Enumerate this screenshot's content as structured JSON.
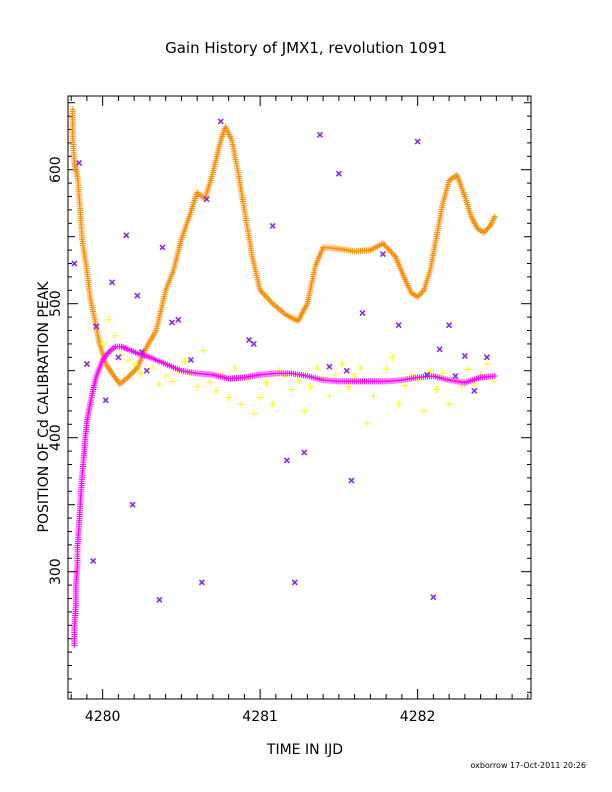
{
  "chart_data": {
    "type": "scatter",
    "title": "Gain History of JMX1, revolution 1091",
    "xlabel": "TIME IN IJD",
    "ylabel": "POSITION OF Cd CALIBRATION PEAK",
    "xlim": [
      4279.78,
      4282.72
    ],
    "ylim": [
      205,
      655
    ],
    "x_ticks": [
      4280,
      4281,
      4282
    ],
    "y_ticks": [
      300,
      400,
      500,
      600
    ],
    "grid": false,
    "footer": "oxborrow 17-Oct-2011 20:26",
    "colors": {
      "orange": "#ff8c00",
      "yellow": "#ffff00",
      "magenta": "#ff00ff",
      "purple": "#8a2be2",
      "frame": "#000000"
    },
    "series": [
      {
        "marker": "plus",
        "color": "#ff8c00",
        "x": [
          4279.81,
          4279.81,
          4279.82,
          4279.83,
          4279.84,
          4279.85,
          4279.86,
          4279.87,
          4279.88,
          4279.9,
          4279.92,
          4279.95,
          4279.98,
          4280.02,
          4280.06,
          4280.11,
          4280.16,
          4280.22,
          4280.28,
          4280.34,
          4280.4,
          4280.45,
          4280.5,
          4280.55,
          4280.6,
          4280.65,
          4280.7,
          4280.75,
          4280.78,
          4280.82,
          4280.86,
          4280.9,
          4280.95,
          4281.0,
          4281.08,
          4281.16,
          4281.24,
          4281.3,
          4281.35,
          4281.4,
          4281.5,
          4281.6,
          4281.7,
          4281.78,
          4281.86,
          4281.92,
          4281.96,
          4282.0,
          4282.04,
          4282.08,
          4282.12,
          4282.16,
          4282.2,
          4282.25,
          4282.3,
          4282.34,
          4282.38,
          4282.42,
          4282.46,
          4282.49
        ],
        "y": [
          645,
          625,
          605,
          600,
          595,
          582,
          565,
          548,
          540,
          525,
          505,
          488,
          470,
          455,
          448,
          440,
          445,
          452,
          468,
          480,
          510,
          525,
          548,
          565,
          583,
          578,
          598,
          622,
          632,
          622,
          598,
          570,
          535,
          510,
          500,
          492,
          487,
          500,
          528,
          542,
          541,
          539,
          540,
          545,
          535,
          518,
          508,
          505,
          510,
          525,
          550,
          575,
          592,
          596,
          580,
          565,
          556,
          553,
          558,
          565
        ]
      },
      {
        "marker": "plus",
        "color": "#ffff00",
        "x": [
          4280.0,
          4280.04,
          4280.08,
          4280.12,
          4280.16,
          4280.2,
          4280.24,
          4280.28,
          4280.32,
          4280.36,
          4280.4,
          4280.44,
          4280.48,
          4280.52,
          4280.56,
          4280.6,
          4280.64,
          4280.68,
          4280.72,
          4280.76,
          4280.8,
          4280.84,
          4280.88,
          4280.92,
          4280.96,
          4281.0,
          4281.04,
          4281.08,
          4281.12,
          4281.16,
          4281.2,
          4281.24,
          4281.28,
          4281.32,
          4281.36,
          4281.4,
          4281.44,
          4281.48,
          4281.52,
          4281.56,
          4281.6,
          4281.64,
          4281.68,
          4281.72,
          4281.76,
          4281.8,
          4281.84,
          4281.88,
          4281.92,
          4281.96,
          4282.0,
          4282.04,
          4282.08,
          4282.12,
          4282.16,
          4282.2,
          4282.24,
          4282.28,
          4282.32,
          4282.36,
          4282.4,
          4282.44,
          4282.48
        ],
        "y": [
          470,
          488,
          476,
          462,
          458,
          455,
          448,
          462,
          452,
          440,
          446,
          442,
          450,
          457,
          448,
          438,
          465,
          441,
          435,
          447,
          430,
          452,
          425,
          443,
          418,
          430,
          441,
          425,
          450,
          446,
          436,
          442,
          420,
          438,
          452,
          445,
          431,
          447,
          455,
          438,
          446,
          452,
          411,
          431,
          442,
          451,
          460,
          425,
          439,
          447,
          443,
          420,
          450,
          436,
          448,
          425,
          443,
          438,
          451,
          440,
          447,
          455,
          442
        ]
      },
      {
        "marker": "plus",
        "color": "#ff00ff",
        "x": [
          4279.82,
          4279.82,
          4279.83,
          4279.83,
          4279.84,
          4279.84,
          4279.85,
          4279.86,
          4279.87,
          4279.88,
          4279.89,
          4279.9,
          4279.92,
          4279.94,
          4279.96,
          4279.98,
          4280.0,
          4280.04,
          4280.08,
          4280.12,
          4280.16,
          4280.22,
          4280.3,
          4280.4,
          4280.5,
          4280.6,
          4280.7,
          4280.8,
          4280.9,
          4281.0,
          4281.1,
          4281.2,
          4281.3,
          4281.4,
          4281.5,
          4281.6,
          4281.7,
          4281.8,
          4281.9,
          4282.0,
          4282.1,
          4282.2,
          4282.3,
          4282.4,
          4282.49
        ],
        "y": [
          245,
          258,
          275,
          290,
          305,
          318,
          335,
          355,
          372,
          385,
          400,
          412,
          425,
          436,
          446,
          452,
          458,
          464,
          468,
          468,
          466,
          463,
          460,
          455,
          450,
          448,
          447,
          444,
          445,
          447,
          448,
          448,
          446,
          443,
          442,
          442,
          442,
          442,
          443,
          445,
          446,
          443,
          441,
          445,
          446
        ]
      },
      {
        "marker": "cross",
        "color": "#8a2be2",
        "x": [
          4279.82,
          4279.85,
          4279.9,
          4279.94,
          4279.96,
          4280.02,
          4280.06,
          4280.1,
          4280.15,
          4280.19,
          4280.22,
          4280.25,
          4280.28,
          4280.36,
          4280.38,
          4280.44,
          4280.48,
          4280.56,
          4280.63,
          4280.66,
          4280.75,
          4280.93,
          4280.96,
          4281.08,
          4281.17,
          4281.22,
          4281.28,
          4281.38,
          4281.44,
          4281.5,
          4281.55,
          4281.58,
          4281.65,
          4281.78,
          4281.88,
          4282.0,
          4282.06,
          4282.1,
          4282.14,
          4282.2,
          4282.24,
          4282.3,
          4282.36,
          4282.44
        ],
        "y": [
          530,
          605,
          455,
          308,
          483,
          428,
          516,
          460,
          551,
          350,
          506,
          464,
          450,
          279,
          542,
          486,
          488,
          458,
          292,
          578,
          636,
          473,
          470,
          558,
          383,
          292,
          389,
          626,
          453,
          597,
          450,
          368,
          493,
          537,
          484,
          621,
          447,
          281,
          466,
          484,
          446,
          461,
          435,
          460
        ]
      }
    ]
  }
}
